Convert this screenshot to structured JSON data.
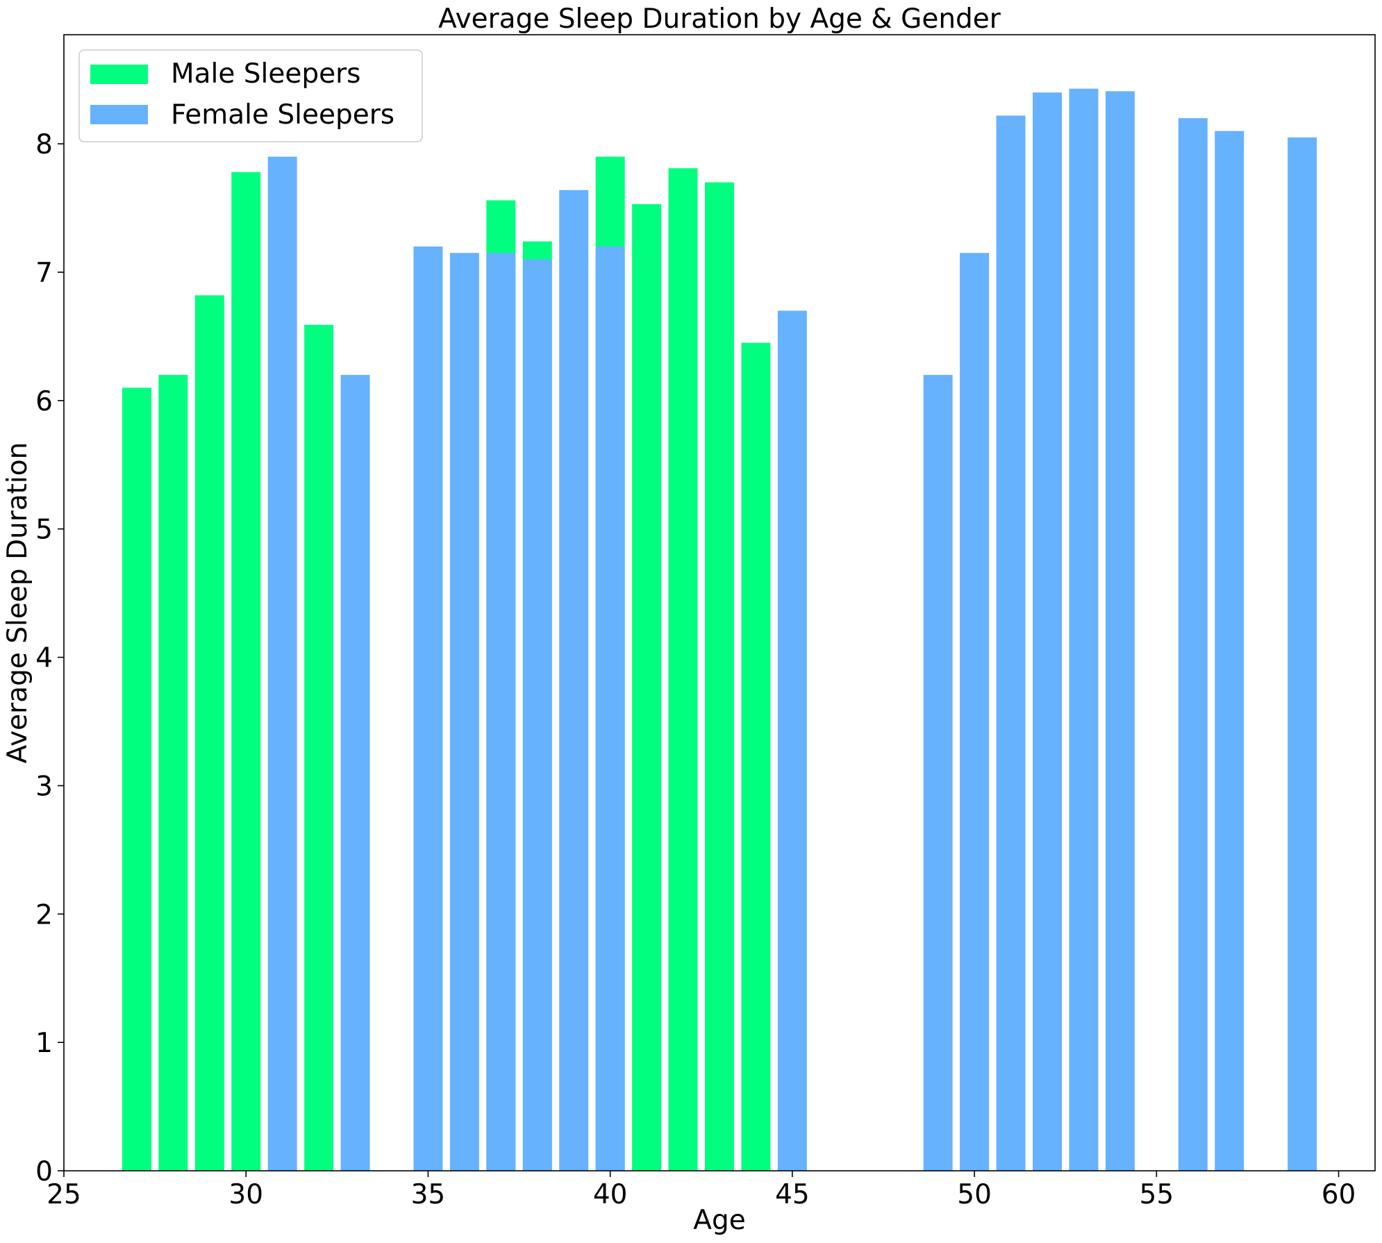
{
  "chart_data": {
    "type": "bar",
    "title": "Average Sleep Duration by Age & Gender",
    "xlabel": "Age",
    "ylabel": "Average Sleep Duration",
    "xlim": [
      25,
      61
    ],
    "ylim": [
      0,
      8.85
    ],
    "xticks": [
      25,
      30,
      35,
      40,
      45,
      50,
      55,
      60
    ],
    "yticks": [
      0,
      1,
      2,
      3,
      4,
      5,
      6,
      7,
      8
    ],
    "grid": false,
    "legend_position": "top-left",
    "bar_width": 0.8,
    "series": [
      {
        "name": "Male Sleepers",
        "color": "#00ff7f",
        "x": [
          27,
          28,
          29,
          30,
          32,
          37,
          38,
          40,
          41,
          42,
          43,
          44
        ],
        "values": [
          6.1,
          6.2,
          6.82,
          7.78,
          6.59,
          7.56,
          7.24,
          7.9,
          7.53,
          7.81,
          7.7,
          6.45
        ]
      },
      {
        "name": "Female Sleepers",
        "color": "#66b2ff",
        "x": [
          31,
          33,
          35,
          36,
          37,
          38,
          39,
          40,
          45,
          49,
          50,
          51,
          52,
          53,
          54,
          56,
          57,
          59
        ],
        "values": [
          7.9,
          6.2,
          7.2,
          7.15,
          7.15,
          7.1,
          7.64,
          7.2,
          6.7,
          6.2,
          7.15,
          8.22,
          8.4,
          8.43,
          8.41,
          8.2,
          8.1,
          8.05
        ]
      }
    ]
  }
}
